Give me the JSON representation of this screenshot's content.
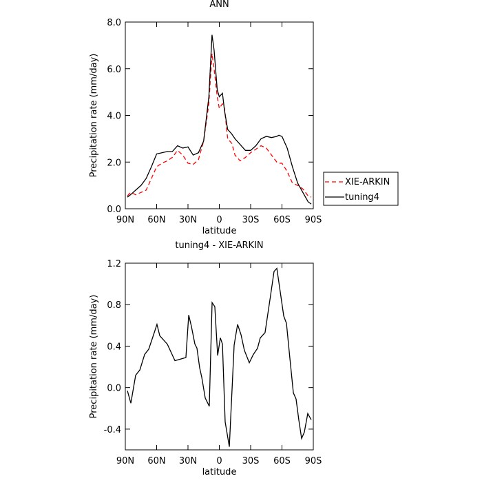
{
  "chart_data": [
    {
      "type": "line",
      "title": "ANN",
      "x_label": "latitude",
      "y_label": "Precipitation rate (mm/day)",
      "x": [
        88,
        85,
        80,
        75,
        70,
        65,
        60,
        55,
        50,
        45,
        40,
        35,
        30,
        25,
        20,
        15,
        10,
        7,
        5,
        2,
        0,
        -3,
        -5,
        -8,
        -12,
        -15,
        -20,
        -25,
        -30,
        -35,
        -40,
        -45,
        -50,
        -55,
        -57,
        -60,
        -65,
        -70,
        -75,
        -80,
        -85,
        -88
      ],
      "series": [
        {
          "name": "XIE-ARKIN",
          "color": "#ff0000",
          "line_style": "dashed",
          "values": [
            0.55,
            0.7,
            0.6,
            0.7,
            0.8,
            1.3,
            1.8,
            1.95,
            2.05,
            2.2,
            2.5,
            2.3,
            1.95,
            1.9,
            2.1,
            2.9,
            4.5,
            6.65,
            6.0,
            4.8,
            4.3,
            4.5,
            4.3,
            3.0,
            2.8,
            2.3,
            2.05,
            2.2,
            2.4,
            2.55,
            2.7,
            2.6,
            2.3,
            2.0,
            1.95,
            1.95,
            1.6,
            1.1,
            1.0,
            0.85,
            0.55,
            0.5
          ]
        },
        {
          "name": "tuning4",
          "color": "#000000",
          "line_style": "solid",
          "values": [
            0.5,
            0.6,
            0.8,
            1.0,
            1.3,
            1.8,
            2.35,
            2.4,
            2.45,
            2.45,
            2.7,
            2.6,
            2.65,
            2.3,
            2.4,
            2.9,
            4.8,
            7.45,
            6.8,
            5.1,
            4.8,
            4.95,
            4.2,
            3.4,
            3.2,
            3.0,
            2.75,
            2.5,
            2.5,
            2.7,
            3.0,
            3.1,
            3.05,
            3.1,
            3.15,
            3.1,
            2.6,
            1.8,
            1.1,
            0.7,
            0.3,
            0.2
          ]
        }
      ],
      "xlim": [
        90,
        -90
      ],
      "xticks": [
        {
          "value": 90,
          "label": "90N"
        },
        {
          "value": 60,
          "label": "60N"
        },
        {
          "value": 30,
          "label": "30N"
        },
        0,
        {
          "value": -30,
          "label": "30S"
        },
        {
          "value": -60,
          "label": "60S"
        },
        {
          "value": -90,
          "label": "90S"
        }
      ],
      "ylim": [
        0,
        8
      ],
      "yticks": [
        {
          "value": 0,
          "label": "0.0"
        },
        {
          "value": 2,
          "label": "2.0"
        },
        {
          "value": 4,
          "label": "4.0"
        },
        {
          "value": 6,
          "label": "6.0"
        },
        {
          "value": 8,
          "label": "8.0"
        }
      ],
      "legend": "right"
    },
    {
      "type": "line",
      "title": "tuning4 - XIE-ARKIN",
      "x_label": "latitude",
      "y_label": "Precipitation rate (mm/day)",
      "x": [
        88.0,
        84.7,
        80.1,
        76.1,
        71.5,
        67.6,
        63.6,
        59.7,
        57.0,
        49.8,
        42.5,
        32.0,
        29.3,
        26.7,
        23.4,
        21.4,
        18.8,
        16.8,
        13.5,
        9.6,
        6.9,
        4.3,
        1.6,
        -1.0,
        -3.0,
        -5.6,
        -9.6,
        -14.2,
        -17.5,
        -20.8,
        -24.0,
        -28.7,
        -32.6,
        -36.6,
        -39.2,
        -43.8,
        -49.1,
        -52.4,
        -55.1,
        -58.4,
        -61.7,
        -64.3,
        -67.6,
        -70.9,
        -73.5,
        -76.1,
        -78.8,
        -81.4,
        -84.7,
        -88.0
      ],
      "series": [
        {
          "color": "#000000",
          "line_style": "solid",
          "values": [
            -0.03,
            -0.15,
            0.12,
            0.17,
            0.32,
            0.37,
            0.49,
            0.61,
            0.5,
            0.42,
            0.26,
            0.29,
            0.7,
            0.59,
            0.42,
            0.38,
            0.19,
            0.1,
            -0.1,
            -0.18,
            0.82,
            0.78,
            0.31,
            0.48,
            0.42,
            -0.33,
            -0.57,
            0.41,
            0.61,
            0.51,
            0.36,
            0.24,
            0.32,
            0.38,
            0.48,
            0.53,
            0.89,
            1.12,
            1.15,
            0.92,
            0.69,
            0.62,
            0.28,
            -0.05,
            -0.11,
            -0.31,
            -0.49,
            -0.43,
            -0.25,
            -0.31
          ]
        }
      ],
      "xlim": [
        90,
        -90
      ],
      "xticks": [
        {
          "value": 90,
          "label": "90N"
        },
        {
          "value": 60,
          "label": "60N"
        },
        {
          "value": 30,
          "label": "30N"
        },
        0,
        {
          "value": -30,
          "label": "30S"
        },
        {
          "value": -60,
          "label": "60S"
        },
        {
          "value": -90,
          "label": "90S"
        }
      ],
      "ylim": [
        -0.6,
        1.2
      ],
      "yticks": [
        -0.4,
        {
          "value": 0,
          "label": "0.0"
        },
        0.4,
        0.8,
        1.2
      ]
    }
  ]
}
